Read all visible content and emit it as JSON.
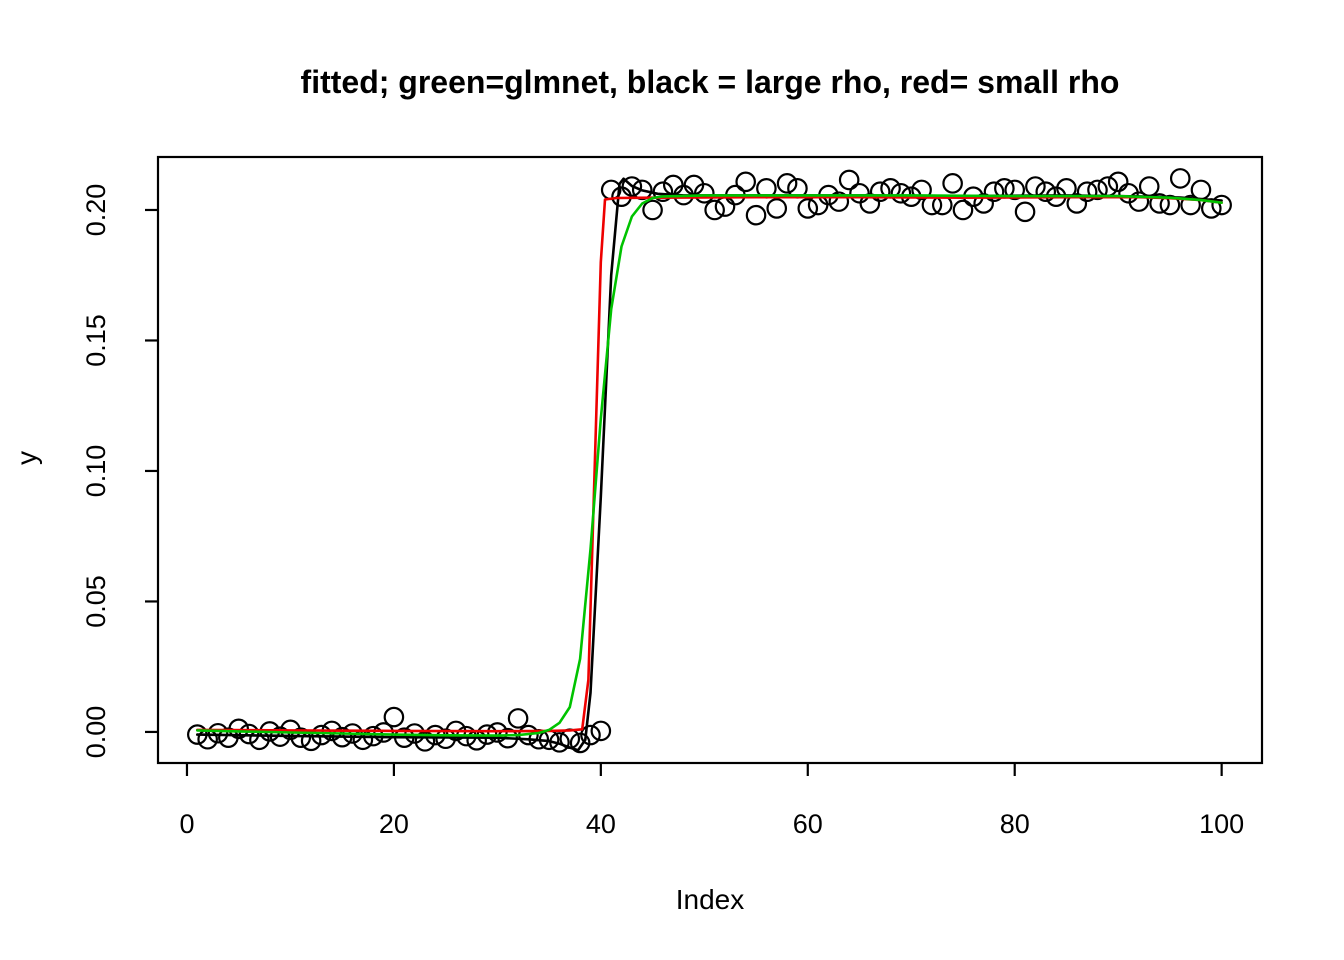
{
  "figure": {
    "title": "fitted; green=glmnet, black = large rho, red= small rho",
    "xlabel": "Index",
    "ylabel": "y"
  },
  "chart_data": {
    "type": "scatter",
    "title": "fitted; green=glmnet, black = large rho, red= small rho",
    "xlabel": "Index",
    "ylabel": "y",
    "xlim": [
      -2.8,
      103.9
    ],
    "ylim": [
      -0.0119,
      0.2203
    ],
    "grid": false,
    "legend_position": "none",
    "xticks": {
      "values": [
        0,
        20,
        40,
        60,
        80,
        100
      ],
      "labels": [
        "0",
        "20",
        "40",
        "60",
        "80",
        "100"
      ]
    },
    "yticks": {
      "values": [
        0,
        0.05,
        0.1,
        0.15,
        0.2
      ],
      "labels": [
        "0.00",
        "0.05",
        "0.10",
        "0.15",
        "0.20"
      ]
    },
    "points": {
      "marker": "open-circle",
      "color": "#000000",
      "x": [
        1,
        2,
        3,
        4,
        5,
        6,
        7,
        8,
        9,
        10,
        11,
        12,
        13,
        14,
        15,
        16,
        17,
        18,
        19,
        20,
        21,
        22,
        23,
        24,
        25,
        26,
        27,
        28,
        29,
        30,
        31,
        32,
        33,
        34,
        35,
        36,
        37,
        38,
        39,
        40,
        41,
        42,
        43,
        44,
        45,
        46,
        47,
        48,
        49,
        50,
        51,
        52,
        53,
        54,
        55,
        56,
        57,
        58,
        59,
        60,
        61,
        62,
        63,
        64,
        65,
        66,
        67,
        68,
        69,
        70,
        71,
        72,
        73,
        74,
        75,
        76,
        77,
        78,
        79,
        80,
        81,
        82,
        83,
        84,
        85,
        86,
        87,
        88,
        89,
        90,
        91,
        92,
        93,
        94,
        95,
        96,
        97,
        98,
        99,
        100
      ],
      "y": [
        -0.001,
        -0.0028,
        -0.0005,
        -0.0022,
        0.0012,
        -0.0008,
        -0.003,
        0.0002,
        -0.0018,
        0.0008,
        -0.0022,
        -0.0034,
        -0.0012,
        0.0004,
        -0.002,
        -0.0006,
        -0.003,
        -0.0016,
        -0.0002,
        0.0057,
        -0.0022,
        -0.0006,
        -0.0036,
        -0.0012,
        -0.0026,
        0.0004,
        -0.0016,
        -0.0032,
        -0.001,
        -0.0002,
        -0.0024,
        0.0052,
        -0.0012,
        -0.0028,
        -0.003,
        -0.004,
        -0.0026,
        -0.0042,
        -0.0012,
        0.0004,
        0.2077,
        0.2051,
        0.209,
        0.2077,
        0.2,
        0.207,
        0.2096,
        0.2057,
        0.2096,
        0.2064,
        0.2,
        0.2013,
        0.2057,
        0.2108,
        0.198,
        0.2083,
        0.2006,
        0.2102,
        0.2083,
        0.2006,
        0.2019,
        0.2057,
        0.2032,
        0.2115,
        0.2064,
        0.2025,
        0.207,
        0.2083,
        0.2064,
        0.2051,
        0.2077,
        0.2019,
        0.2019,
        0.2102,
        0.2,
        0.2051,
        0.2025,
        0.207,
        0.2083,
        0.2077,
        0.1993,
        0.209,
        0.207,
        0.2051,
        0.2083,
        0.2025,
        0.207,
        0.2077,
        0.209,
        0.2108,
        0.2064,
        0.2032,
        0.209,
        0.2025,
        0.2019,
        0.2121,
        0.2019,
        0.2077,
        0.2006,
        0.2019
      ]
    },
    "series": [
      {
        "name": "glmnet",
        "color": "#00C300",
        "points": [
          [
            1,
            0.0006
          ],
          [
            5,
            0.0002
          ],
          [
            10,
            -0.0002
          ],
          [
            15,
            -0.0006
          ],
          [
            20,
            -0.001
          ],
          [
            25,
            -0.0013
          ],
          [
            30,
            -0.0014
          ],
          [
            32,
            -0.0012
          ],
          [
            34,
            -0.0004
          ],
          [
            35,
            0.0008
          ],
          [
            36,
            0.0035
          ],
          [
            37,
            0.0095
          ],
          [
            38,
            0.028
          ],
          [
            39,
            0.07
          ],
          [
            40,
            0.12
          ],
          [
            41,
            0.162
          ],
          [
            42,
            0.186
          ],
          [
            43,
            0.1975
          ],
          [
            44,
            0.2025
          ],
          [
            45,
            0.2046
          ],
          [
            46,
            0.2052
          ],
          [
            50,
            0.2056
          ],
          [
            60,
            0.2056
          ],
          [
            70,
            0.2056
          ],
          [
            80,
            0.2053
          ],
          [
            90,
            0.2053
          ],
          [
            95,
            0.2047
          ],
          [
            98,
            0.2038
          ],
          [
            100,
            0.2028
          ]
        ]
      },
      {
        "name": "large rho",
        "color": "#000000",
        "points": [
          [
            1,
            -0.001
          ],
          [
            10,
            -0.0015
          ],
          [
            20,
            -0.002
          ],
          [
            30,
            -0.0022
          ],
          [
            33,
            -0.0028
          ],
          [
            35,
            -0.0035
          ],
          [
            36,
            -0.0045
          ],
          [
            37,
            -0.006
          ],
          [
            37.8,
            -0.007
          ],
          [
            38.5,
            -0.003
          ],
          [
            39,
            0.015
          ],
          [
            40,
            0.09
          ],
          [
            41,
            0.175
          ],
          [
            41.8,
            0.21
          ],
          [
            42.2,
            0.212
          ],
          [
            43,
            0.2092
          ],
          [
            44,
            0.2075
          ],
          [
            45.5,
            0.2062
          ],
          [
            48,
            0.2056
          ],
          [
            55,
            0.2056
          ],
          [
            65,
            0.2056
          ],
          [
            75,
            0.2054
          ],
          [
            85,
            0.2056
          ],
          [
            92,
            0.2052
          ],
          [
            96,
            0.2048
          ],
          [
            100,
            0.2036
          ]
        ]
      },
      {
        "name": "small rho",
        "color": "#EE0000",
        "points": [
          [
            1,
            0.0008
          ],
          [
            10,
            0.0006
          ],
          [
            20,
            0.0004
          ],
          [
            30,
            0.0003
          ],
          [
            35,
            0.0004
          ],
          [
            37,
            0.0006
          ],
          [
            38.2,
            0.001
          ],
          [
            38.8,
            0.02
          ],
          [
            39.4,
            0.1
          ],
          [
            40.0,
            0.18
          ],
          [
            40.4,
            0.204
          ],
          [
            41.5,
            0.2046
          ],
          [
            45,
            0.2047
          ],
          [
            55,
            0.2049
          ],
          [
            65,
            0.2049
          ],
          [
            75,
            0.2047
          ],
          [
            85,
            0.2049
          ],
          [
            92,
            0.2049
          ],
          [
            95,
            0.2045
          ],
          [
            98,
            0.2038
          ],
          [
            100,
            0.2028
          ]
        ]
      }
    ]
  }
}
